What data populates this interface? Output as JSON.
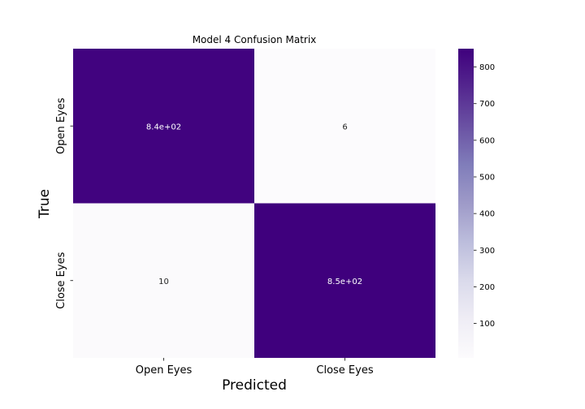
{
  "chart_data": {
    "type": "heatmap",
    "title": "Model 4 Confusion Matrix",
    "xlabel": "Predicted",
    "ylabel": "True",
    "x_categories": [
      "Open Eyes",
      "Close Eyes"
    ],
    "y_categories": [
      "Open Eyes",
      "Close Eyes"
    ],
    "values": [
      [
        840,
        6
      ],
      [
        10,
        850
      ]
    ],
    "annotations": [
      [
        "8.4e+02",
        "6"
      ],
      [
        "10",
        "8.5e+02"
      ]
    ],
    "colormap": "Purples",
    "colorbar": {
      "range": [
        6,
        850
      ],
      "ticks": [
        100,
        200,
        300,
        400,
        500,
        600,
        700,
        800
      ]
    },
    "colors": {
      "low": "#fcfbfd",
      "high": "#3f007d"
    }
  }
}
